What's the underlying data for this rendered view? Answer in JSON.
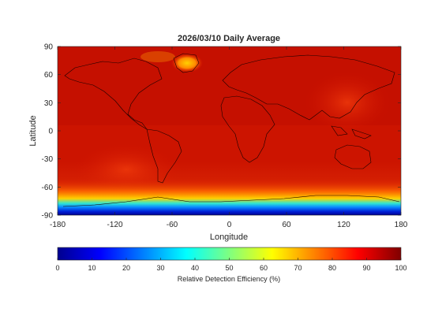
{
  "chart_data": {
    "type": "heatmap",
    "title": "2026/03/10 Daily Average",
    "xlabel": "Longitude",
    "ylabel": "Latitude",
    "xlim": [
      -180,
      180
    ],
    "ylim": [
      -90,
      90
    ],
    "xticks": [
      "-180",
      "-120",
      "-60",
      "0",
      "60",
      "120",
      "180"
    ],
    "yticks": [
      "90",
      "60",
      "30",
      "0",
      "-30",
      "-60",
      "-90"
    ],
    "xtick_values": [
      -180,
      -120,
      -60,
      0,
      60,
      120,
      180
    ],
    "ytick_values": [
      90,
      60,
      30,
      0,
      -30,
      -60,
      -90
    ],
    "colorbar": {
      "label": "Relative Detection Efficiency (%)",
      "range": [
        0,
        100
      ],
      "ticks": [
        "0",
        "10",
        "20",
        "30",
        "40",
        "50",
        "60",
        "70",
        "80",
        "90",
        "100"
      ],
      "tick_values": [
        0,
        10,
        20,
        30,
        40,
        50,
        60,
        70,
        80,
        90,
        100
      ],
      "colormap": "jet",
      "orientation": "horizontal"
    },
    "features": [
      {
        "region": "most of globe",
        "value_range": [
          85,
          98
        ]
      },
      {
        "region": "Greenland",
        "lon": [
          -50,
          -25
        ],
        "lat": [
          62,
          80
        ],
        "value_range": [
          70,
          80
        ]
      },
      {
        "region": "Southern Ocean / Antarctic coast",
        "lat": [
          -90,
          -72
        ],
        "value_range": [
          5,
          40
        ]
      },
      {
        "region": "South Atlantic / South Pacific band",
        "lat": [
          -72,
          -55
        ],
        "value_range": [
          75,
          85
        ]
      }
    ],
    "coastlines": true,
    "grid": false
  }
}
